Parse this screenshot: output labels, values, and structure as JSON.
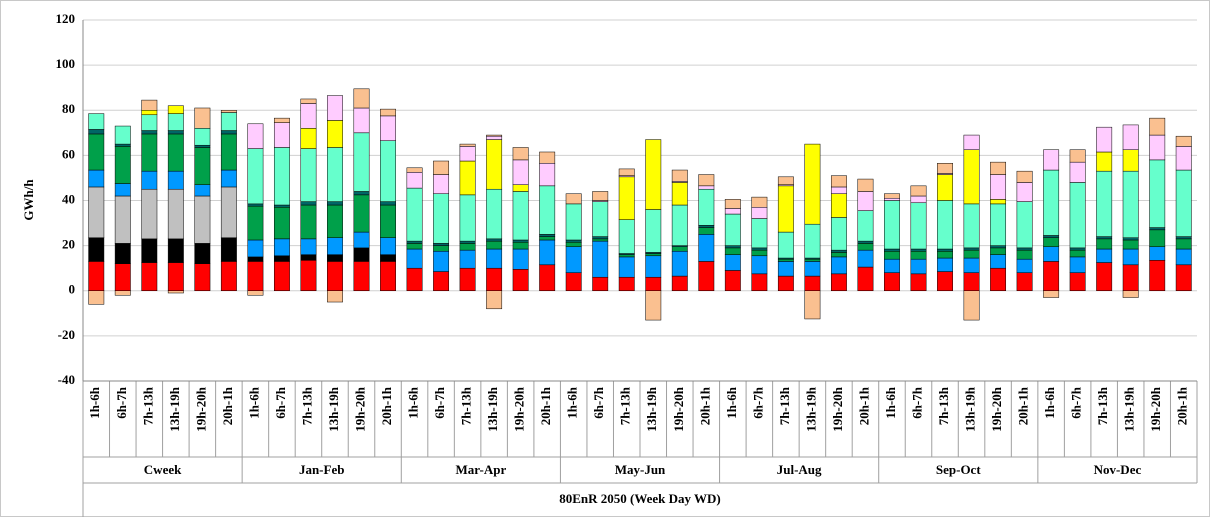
{
  "chart_data": {
    "type": "stacked-bar",
    "y_label": "GWh/h",
    "x_label": "80EnR 2050 (Week Day WD)",
    "groups": [
      "Cweek",
      "Jan-Feb",
      "Mar-Apr",
      "May-Jun",
      "Jul-Aug",
      "Sep-Oct",
      "Nov-Dec"
    ],
    "categories": [
      "1h-6h",
      "6h-7h",
      "7h-13h",
      "13h-19h",
      "19h-20h",
      "20h-1h",
      "1h-6h",
      "6h-7h",
      "7h-13h",
      "13h-19h",
      "19h-20h",
      "20h-1h",
      "1h-6h",
      "6h-7h",
      "7h-13h",
      "13h-19h",
      "19h-20h",
      "20h-1h",
      "1h-6h",
      "6h-7h",
      "7h-13h",
      "13h-19h",
      "19h-20h",
      "20h-1h",
      "1h-6h",
      "6h-7h",
      "7h-13h",
      "13h-19h",
      "19h-20h",
      "20h-1h",
      "1h-6h",
      "6h-7h",
      "7h-13h",
      "13h-19h",
      "19h-20h",
      "20h-1h",
      "1h-6h",
      "6h-7h",
      "7h-13h",
      "13h-19h",
      "19h-20h",
      "20h-1h"
    ],
    "ylim": [
      -40,
      120
    ],
    "yticks": [
      -40,
      -20,
      0,
      20,
      40,
      60,
      80,
      100,
      120
    ],
    "grid": true,
    "series": [
      {
        "color": "#ff0000",
        "values": [
          13,
          12,
          12.5,
          12.5,
          12,
          13,
          13,
          13,
          13.5,
          13,
          13,
          13,
          10,
          8.5,
          10,
          10,
          9.5,
          11.5,
          8,
          6,
          6,
          6,
          6.5,
          13,
          9,
          7.5,
          6.5,
          6.5,
          7.5,
          10.5,
          8,
          7.5,
          8.5,
          8,
          10,
          8,
          13,
          8,
          12.5,
          11.5,
          13.5,
          11.5
        ]
      },
      {
        "color": "#000000",
        "values": [
          10.5,
          9,
          10.5,
          10.5,
          9,
          10.5,
          2,
          2.5,
          2.5,
          3,
          6,
          3,
          0,
          0,
          0,
          0,
          0,
          0,
          0,
          0,
          0,
          0,
          0,
          0,
          0,
          0,
          0,
          0,
          0,
          0,
          0,
          0,
          0,
          0,
          0,
          0,
          0,
          0,
          0,
          0,
          0,
          0
        ]
      },
      {
        "color": "#c0c0c0",
        "values": [
          22.5,
          21,
          22,
          22,
          21,
          22.5,
          0,
          0,
          0,
          0,
          0,
          0,
          0,
          0,
          0,
          0,
          0,
          0,
          0,
          0,
          0,
          0,
          0,
          0,
          0,
          0,
          0,
          0,
          0,
          0,
          0,
          0,
          0,
          0,
          0,
          0,
          0,
          0,
          0,
          0,
          0,
          0
        ]
      },
      {
        "color": "#0099ff",
        "values": [
          7.5,
          5.5,
          8,
          8,
          5,
          7.5,
          7.5,
          7.5,
          7,
          7.5,
          7,
          7.5,
          8.5,
          9,
          8,
          8.5,
          9,
          11,
          11.5,
          16,
          9,
          9.5,
          11,
          12,
          7,
          8,
          6.5,
          6.5,
          7.5,
          7.5,
          6,
          6.5,
          6,
          6.5,
          6,
          6,
          6.5,
          7,
          6,
          7,
          6,
          7
        ]
      },
      {
        "color": "#00a04a",
        "values": [
          16,
          16.5,
          16.5,
          16.5,
          16.5,
          16,
          15,
          14,
          15,
          14.5,
          16.5,
          14.5,
          2.5,
          2.5,
          3,
          3.5,
          3,
          1.5,
          2,
          1,
          1,
          1,
          2,
          3,
          3,
          2.5,
          1,
          1,
          2,
          3,
          3.5,
          3.5,
          3,
          3.5,
          3,
          4,
          4,
          3,
          4.5,
          4,
          7.5,
          4.5
        ]
      },
      {
        "color": "#006666",
        "values": [
          2,
          1,
          1.5,
          1.5,
          1,
          1.5,
          1,
          1,
          1.5,
          1.5,
          1.5,
          1.5,
          1,
          1,
          1,
          1,
          1,
          1,
          1,
          1,
          0.5,
          0.5,
          0.5,
          1,
          1,
          1,
          0.5,
          0.5,
          1,
          1,
          1,
          1,
          1,
          1,
          1,
          1,
          1,
          1,
          1,
          1,
          1,
          1
        ]
      },
      {
        "color": "#66ffcc",
        "values": [
          7,
          8,
          7,
          7.5,
          7.5,
          8,
          24.5,
          25.5,
          23.5,
          24,
          26,
          27,
          23.5,
          22,
          20.5,
          22,
          21.5,
          21.5,
          16,
          15.5,
          15,
          19,
          18,
          16,
          14,
          13,
          11.5,
          15,
          14.5,
          13.5,
          21.5,
          20.5,
          21.5,
          19.5,
          18.5,
          20.5,
          29,
          29,
          29,
          29.5,
          30,
          29.5
        ]
      },
      {
        "color": "#ffff00",
        "values": [
          0,
          0,
          2,
          3.5,
          0,
          0,
          0,
          0,
          9,
          12,
          0,
          0,
          0,
          0,
          15,
          22,
          3,
          0,
          0,
          0,
          19,
          31,
          10,
          0,
          0,
          0,
          20.5,
          35.5,
          10.5,
          0,
          0,
          0,
          11.5,
          24,
          2,
          0,
          0,
          0,
          8.5,
          9.5,
          0,
          0
        ]
      },
      {
        "color": "#ffccff",
        "values": [
          0,
          0,
          0,
          0,
          0,
          0,
          11,
          11,
          11,
          11,
          11,
          11,
          7,
          8.5,
          6.5,
          1.5,
          11,
          10,
          0,
          0.5,
          0.5,
          0,
          0.5,
          1.5,
          2.5,
          5,
          0.5,
          0,
          3,
          8.5,
          1,
          3,
          0.5,
          6.5,
          11,
          8.5,
          9,
          9,
          11,
          11,
          11,
          10.5
        ]
      },
      {
        "color": "#fac090",
        "values": [
          0,
          0,
          4.5,
          0,
          9,
          1,
          0,
          2,
          2,
          0,
          8.5,
          3,
          2,
          6,
          1,
          0.5,
          5.5,
          5,
          4.5,
          4,
          3,
          0,
          5,
          5,
          4,
          4.5,
          3.5,
          0,
          5,
          5.5,
          2,
          4.5,
          4.5,
          0,
          5.5,
          5,
          0,
          5.5,
          0,
          0,
          7.5,
          4.5
        ]
      },
      {
        "color": "#fac090",
        "values": [
          -6,
          -2,
          0,
          -1,
          0,
          0,
          -2,
          0,
          0,
          -5,
          0,
          0,
          0,
          0,
          0,
          -8,
          0,
          0,
          0,
          0,
          0,
          -13,
          0,
          0,
          0,
          0,
          0,
          -12.5,
          0,
          0,
          0,
          0,
          0,
          -13,
          0,
          0,
          -3,
          0,
          0,
          -3,
          0,
          0
        ]
      }
    ]
  }
}
